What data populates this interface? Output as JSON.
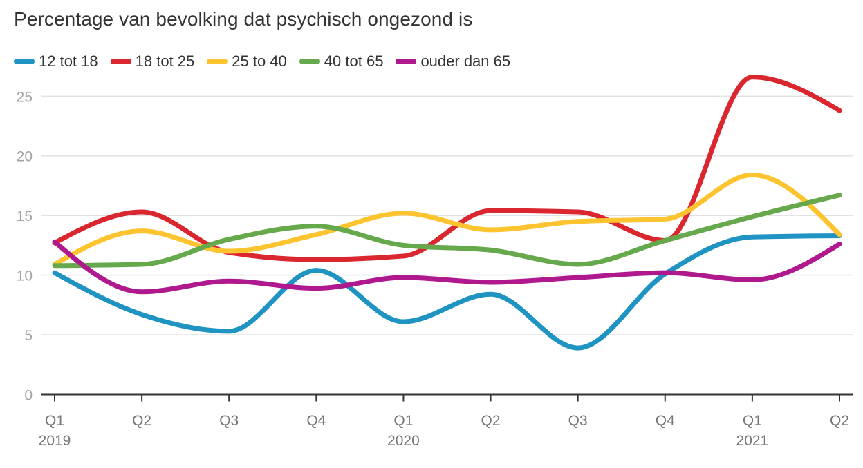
{
  "chart_data": {
    "type": "line",
    "title": "Percentage van bevolking dat psychisch ongezond is",
    "xlabel": "",
    "ylabel": "",
    "ylim": [
      0,
      27
    ],
    "y_ticks": [
      "0",
      "5",
      "10",
      "15",
      "20",
      "25"
    ],
    "y_tick_values": [
      0,
      5,
      10,
      15,
      20,
      25
    ],
    "grid": true,
    "legend_position": "top-left",
    "categories": [
      "Q1 2019",
      "Q2 2019",
      "Q3 2019",
      "Q4 2019",
      "Q1 2020",
      "Q2 2020",
      "Q3 2020",
      "Q4 2020",
      "Q1 2021",
      "Q2 2021"
    ],
    "x_tick_labels": [
      {
        "quarter": "Q1",
        "year": "2019"
      },
      {
        "quarter": "Q2",
        "year": ""
      },
      {
        "quarter": "Q3",
        "year": ""
      },
      {
        "quarter": "Q4",
        "year": ""
      },
      {
        "quarter": "Q1",
        "year": "2020"
      },
      {
        "quarter": "Q2",
        "year": ""
      },
      {
        "quarter": "Q3",
        "year": ""
      },
      {
        "quarter": "Q4",
        "year": ""
      },
      {
        "quarter": "Q1",
        "year": "2021"
      },
      {
        "quarter": "Q2",
        "year": ""
      }
    ],
    "series": [
      {
        "name": "12 tot 18",
        "color": "#1f93c1",
        "values": [
          10.2,
          6.7,
          5.3,
          10.4,
          6.1,
          8.4,
          3.9,
          10.1,
          13.2,
          13.3
        ]
      },
      {
        "name": "18 tot 25",
        "color": "#d9262f",
        "values": [
          12.7,
          15.3,
          11.9,
          11.3,
          11.6,
          15.4,
          15.3,
          12.9,
          26.6,
          23.8
        ]
      },
      {
        "name": "25 to 40",
        "color": "#fdc430",
        "values": [
          10.9,
          13.7,
          12.0,
          13.4,
          15.2,
          13.8,
          14.5,
          14.7,
          18.4,
          13.4
        ]
      },
      {
        "name": "40 tot 65",
        "color": "#66a94c",
        "values": [
          10.8,
          10.9,
          13.0,
          14.1,
          12.5,
          12.1,
          10.9,
          12.9,
          14.9,
          16.7
        ]
      },
      {
        "name": "ouder dan 65",
        "color": "#b0198e",
        "values": [
          12.8,
          8.6,
          9.5,
          8.9,
          9.8,
          9.4,
          9.8,
          10.2,
          9.6,
          12.6
        ]
      }
    ]
  }
}
